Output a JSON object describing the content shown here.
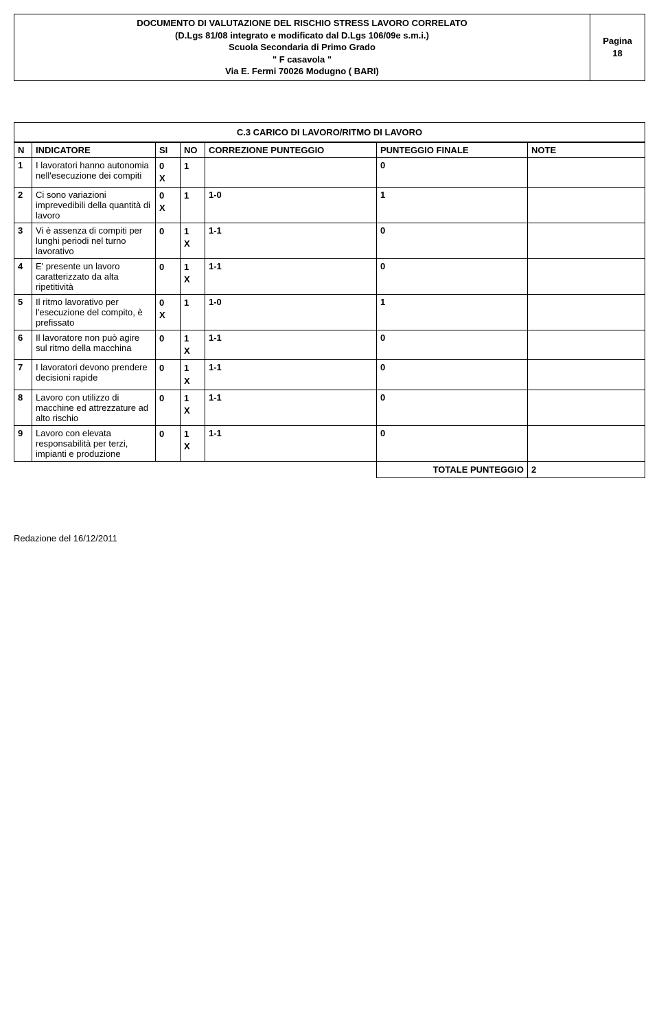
{
  "header": {
    "line1": "DOCUMENTO DI VALUTAZIONE DEL RISCHIO STRESS LAVORO CORRELATO",
    "line2": "(D.Lgs 81/08 integrato e modificato dal D.Lgs 106/09e s.m.i.)",
    "line3": "Scuola Secondaria di Primo Grado",
    "line4": "\" F casavola \"",
    "line5": "Via E. Fermi  70026 Modugno ( BARI)",
    "pag_label": "Pagina",
    "pag_num": "18"
  },
  "section_title": "C.3   CARICO DI LAVORO/RITMO DI LAVORO",
  "columns": {
    "n": "N",
    "indicatore": "INDICATORE",
    "si": "SI",
    "no": "NO",
    "correzione": "CORREZIONE PUNTEGGIO",
    "finale": "PUNTEGGIO FINALE",
    "note": "NOTE"
  },
  "rows": [
    {
      "n": "1",
      "ind": "I lavoratori hanno autonomia nell'esecuzione dei compiti",
      "si_val": "0",
      "si_x": "X",
      "no_val": "1",
      "no_x": "",
      "corr": "",
      "fin": "0"
    },
    {
      "n": "2",
      "ind": "Ci sono variazioni imprevedibili della quantità di lavoro",
      "si_val": "0",
      "si_x": "X",
      "no_val": "1",
      "no_x": "",
      "corr": "1-0",
      "fin": "1"
    },
    {
      "n": "3",
      "ind": "Vi è assenza di compiti per lunghi periodi nel turno lavorativo",
      "si_val": "0",
      "si_x": "",
      "no_val": "1",
      "no_x": "X",
      "corr": "1-1",
      "fin": "0"
    },
    {
      "n": "4",
      "ind": "E' presente un lavoro caratterizzato da alta ripetitività",
      "si_val": "0",
      "si_x": "",
      "no_val": "1",
      "no_x": "X",
      "corr": "1-1",
      "fin": "0"
    },
    {
      "n": "5",
      "ind": "Il ritmo lavorativo per l'esecuzione del compito, è prefissato",
      "si_val": "0",
      "si_x": "X",
      "no_val": "1",
      "no_x": "",
      "corr": "1-0",
      "fin": "1"
    },
    {
      "n": "6",
      "ind": "Il lavoratore non può agire sul ritmo della macchina",
      "si_val": "0",
      "si_x": "",
      "no_val": "1",
      "no_x": "X",
      "corr": "1-1",
      "fin": "0"
    },
    {
      "n": "7",
      "ind": "I lavoratori devono prendere decisioni rapide",
      "si_val": "0",
      "si_x": "",
      "no_val": "1",
      "no_x": "X",
      "corr": "1-1",
      "fin": "0"
    },
    {
      "n": "8",
      "ind": "Lavoro con utilizzo di macchine ed attrezzature ad alto rischio",
      "si_val": "0",
      "si_x": "",
      "no_val": "1",
      "no_x": "X",
      "corr": "1-1",
      "fin": "0"
    },
    {
      "n": "9",
      "ind": "Lavoro con elevata responsabilità per terzi, impianti e produzione",
      "si_val": "0",
      "si_x": "",
      "no_val": "1",
      "no_x": "X",
      "corr": "1-1",
      "fin": "0"
    }
  ],
  "total": {
    "label": "TOTALE PUNTEGGIO",
    "value": "2"
  },
  "footer": "Redazione del 16/12/2011"
}
